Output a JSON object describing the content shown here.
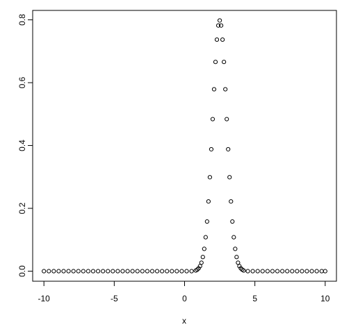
{
  "chart_data": {
    "type": "scatter",
    "xlabel": "x",
    "x": [
      -10,
      -9.65,
      -9.3,
      -8.95,
      -8.6,
      -8.25,
      -7.9,
      -7.55,
      -7.2,
      -6.85,
      -6.5,
      -6.15,
      -5.8,
      -5.45,
      -5.1,
      -4.75,
      -4.4,
      -4.05,
      -3.7,
      -3.35,
      -3,
      -2.65,
      -2.3,
      -1.95,
      -1.6,
      -1.25,
      -0.9,
      -0.55,
      -0.2,
      0.15,
      0.5,
      0.8,
      0.9,
      1.0,
      1.1,
      1.2,
      1.3,
      1.4,
      1.5,
      1.6,
      1.7,
      1.8,
      1.9,
      2.0,
      2.1,
      2.2,
      2.3,
      2.4,
      2.5,
      2.6,
      2.7,
      2.8,
      2.9,
      3.0,
      3.1,
      3.2,
      3.3,
      3.4,
      3.5,
      3.6,
      3.7,
      3.8,
      3.9,
      4.0,
      4.1,
      4.2,
      4.5,
      4.85,
      5.2,
      5.55,
      5.9,
      6.25,
      6.6,
      6.95,
      7.3,
      7.65,
      8,
      8.35,
      8.7,
      9.05,
      9.4,
      9.75,
      10
    ],
    "values": [
      0,
      0,
      0,
      0,
      0,
      0,
      0,
      0,
      0,
      0,
      0,
      0,
      0,
      0,
      0,
      0,
      0,
      0,
      0,
      0,
      0,
      0,
      0,
      0,
      0,
      0,
      0,
      0,
      0,
      0,
      0,
      0.002,
      0.005,
      0.009,
      0.016,
      0.027,
      0.045,
      0.071,
      0.108,
      0.158,
      0.222,
      0.299,
      0.388,
      0.484,
      0.579,
      0.666,
      0.737,
      0.782,
      0.798,
      0.782,
      0.737,
      0.666,
      0.579,
      0.484,
      0.388,
      0.299,
      0.222,
      0.158,
      0.108,
      0.071,
      0.045,
      0.027,
      0.016,
      0.009,
      0.005,
      0.002,
      0,
      0,
      0,
      0,
      0,
      0,
      0,
      0,
      0,
      0,
      0,
      0,
      0,
      0,
      0,
      0,
      0
    ],
    "color": "#000000",
    "xlim": [
      -10.8,
      10.8
    ],
    "ylim": [
      -0.032,
      0.83
    ],
    "xticks": [
      -10,
      -5,
      0,
      5,
      10
    ],
    "yticks": [
      {
        "value": 0,
        "label": "0.0"
      },
      {
        "value": 0.2,
        "label": "0.2"
      },
      {
        "value": 0.4,
        "label": "0.4"
      },
      {
        "value": 0.6,
        "label": "0.6"
      },
      {
        "value": 0.8,
        "label": "0.8"
      }
    ]
  }
}
